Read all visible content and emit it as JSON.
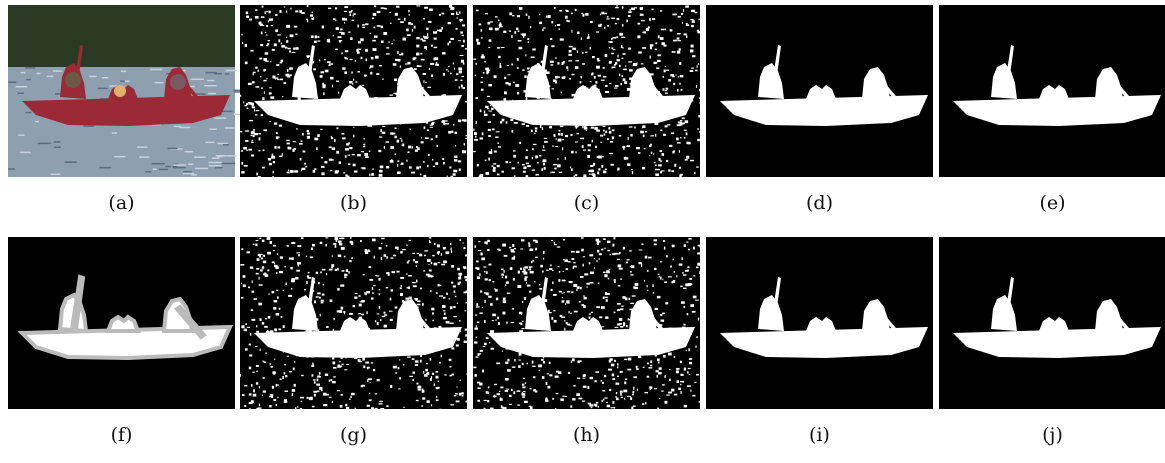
{
  "figure": {
    "captions": [
      "(a)",
      "(b)",
      "(c)",
      "(d)",
      "(e)",
      "(f)",
      "(g)",
      "(h)",
      "(i)",
      "(j)"
    ]
  }
}
